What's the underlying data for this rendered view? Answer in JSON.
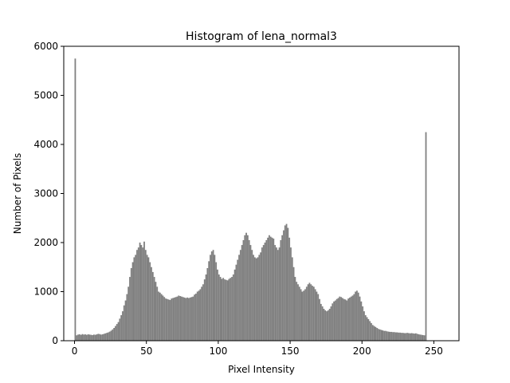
{
  "chart_data": {
    "type": "bar",
    "title": "Histogram of lena_normal3",
    "xlabel": "Pixel Intensity",
    "ylabel": "Number of Pixels",
    "xlim": [
      -7.5,
      267.5
    ],
    "ylim": [
      0,
      6000
    ],
    "xticks": [
      0,
      50,
      100,
      150,
      200,
      250
    ],
    "yticks": [
      0,
      1000,
      2000,
      3000,
      4000,
      5000,
      6000
    ],
    "grid": false,
    "bar_color": "#808080",
    "bin_width": 1,
    "x_start": 0,
    "values": [
      5750,
      110,
      125,
      130,
      120,
      135,
      125,
      130,
      120,
      130,
      125,
      120,
      115,
      125,
      120,
      130,
      140,
      135,
      125,
      130,
      140,
      150,
      160,
      170,
      185,
      205,
      230,
      260,
      300,
      340,
      380,
      450,
      520,
      600,
      720,
      820,
      950,
      1100,
      1300,
      1480,
      1600,
      1700,
      1750,
      1850,
      1900,
      2000,
      1950,
      1900,
      2020,
      1850,
      1750,
      1700,
      1600,
      1500,
      1400,
      1300,
      1200,
      1100,
      1000,
      980,
      950,
      920,
      890,
      860,
      850,
      840,
      830,
      860,
      870,
      880,
      890,
      900,
      920,
      910,
      900,
      890,
      880,
      870,
      880,
      870,
      880,
      890,
      900,
      940,
      960,
      1000,
      1020,
      1050,
      1100,
      1150,
      1250,
      1350,
      1480,
      1620,
      1750,
      1820,
      1850,
      1750,
      1600,
      1450,
      1350,
      1300,
      1260,
      1280,
      1250,
      1240,
      1230,
      1260,
      1280,
      1300,
      1350,
      1450,
      1550,
      1650,
      1750,
      1850,
      1950,
      2050,
      2150,
      2200,
      2150,
      2050,
      1950,
      1850,
      1750,
      1700,
      1680,
      1700,
      1750,
      1800,
      1900,
      1950,
      2000,
      2050,
      2100,
      2150,
      2120,
      2100,
      2080,
      1950,
      1900,
      1850,
      1900,
      2050,
      2150,
      2250,
      2350,
      2380,
      2300,
      2100,
      1900,
      1700,
      1500,
      1300,
      1200,
      1150,
      1100,
      1050,
      1000,
      1020,
      1050,
      1100,
      1150,
      1180,
      1150,
      1120,
      1100,
      1050,
      1000,
      950,
      850,
      750,
      700,
      650,
      620,
      600,
      620,
      650,
      700,
      760,
      800,
      820,
      850,
      870,
      900,
      890,
      870,
      850,
      840,
      820,
      860,
      880,
      900,
      920,
      950,
      1000,
      1020,
      980,
      900,
      800,
      700,
      600,
      520,
      480,
      440,
      400,
      360,
      320,
      300,
      280,
      260,
      240,
      230,
      220,
      210,
      200,
      200,
      190,
      185,
      180,
      180,
      175,
      175,
      170,
      170,
      165,
      165,
      160,
      160,
      155,
      155,
      160,
      155,
      150,
      155,
      150,
      145,
      150,
      140,
      130,
      125,
      120,
      115,
      110,
      4250
    ]
  }
}
